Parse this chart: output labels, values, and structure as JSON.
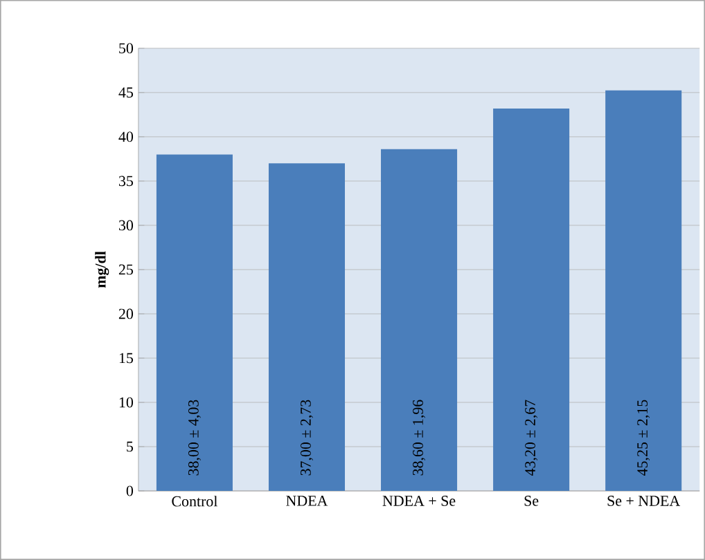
{
  "chart_data": {
    "type": "bar",
    "ylabel": "mg/dl",
    "categories": [
      "Control",
      "NDEA",
      "NDEA + Se",
      "Se",
      "Se + NDEA"
    ],
    "values": [
      38.0,
      37.0,
      38.6,
      43.2,
      45.25
    ],
    "value_labels": [
      "38,00 ± 4,03",
      "37,00 ± 2,73",
      "38,60 ± 1,96",
      "43,20 ± 2,67",
      "45,25 ± 2,15"
    ],
    "color": "#4a7ebb",
    "ylim": [
      0,
      50
    ],
    "yticks": [
      0,
      5,
      10,
      15,
      20,
      25,
      30,
      35,
      40,
      45,
      50
    ],
    "grid": "y"
  }
}
